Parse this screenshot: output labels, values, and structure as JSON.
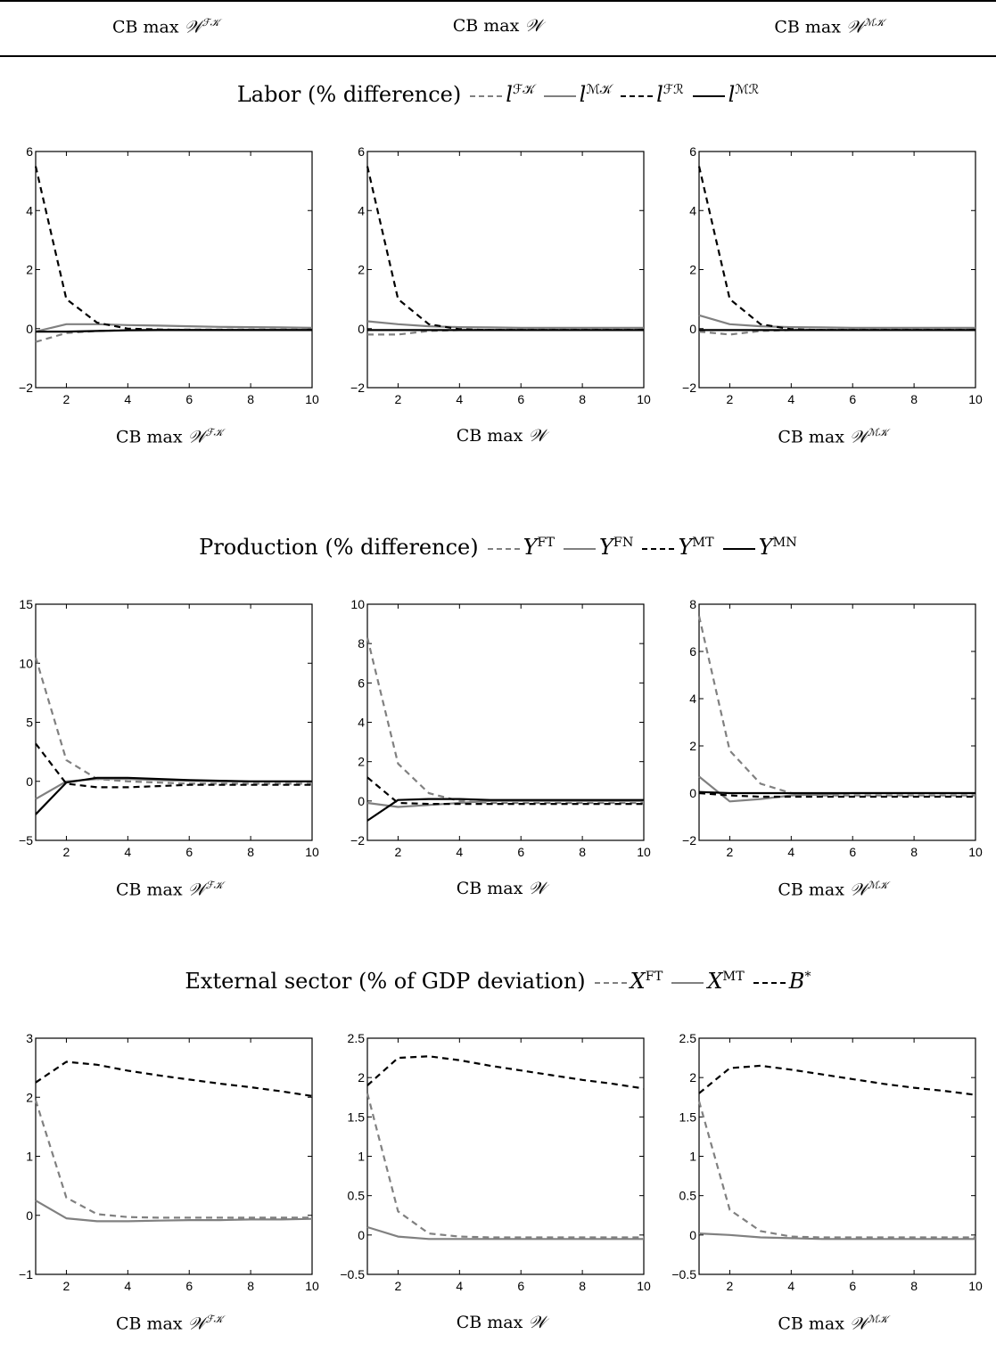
{
  "column_headers": [
    "CB max 𝒲^{ℱ𝒦}",
    "CB max 𝒲",
    "CB max 𝒲^{ℳ𝒦}"
  ],
  "header_parts": [
    {
      "base": "CB max ",
      "sym": "𝒲",
      "sup": "ℱ𝒦"
    },
    {
      "base": "CB max ",
      "sym": "𝒲",
      "sup": ""
    },
    {
      "base": "CB max ",
      "sym": "𝒲",
      "sup": "ℳ𝒦"
    }
  ],
  "colors": {
    "gray": "#808080",
    "black": "#000000"
  },
  "panels": [
    {
      "title": "Labor (% difference)",
      "legend": [
        {
          "label": "l",
          "sup": "ℱ𝒦",
          "color": "#808080",
          "dash": true
        },
        {
          "label": "l",
          "sup": "ℳ𝒦",
          "color": "#808080",
          "dash": false
        },
        {
          "label": "l",
          "sup": "ℱℛ",
          "color": "#000000",
          "dash": true
        },
        {
          "label": "l",
          "sup": "ℳℛ",
          "color": "#000000",
          "dash": false
        }
      ]
    },
    {
      "title": "Production (% difference)",
      "legend": [
        {
          "label": "Y",
          "sup": "FT",
          "color": "#808080",
          "dash": true
        },
        {
          "label": "Y",
          "sup": "FN",
          "color": "#808080",
          "dash": false
        },
        {
          "label": "Y",
          "sup": "MT",
          "color": "#000000",
          "dash": true
        },
        {
          "label": "Y",
          "sup": "MN",
          "color": "#000000",
          "dash": false
        }
      ]
    },
    {
      "title": "External sector (% of GDP deviation)",
      "legend": [
        {
          "label": "X",
          "sup": "FT",
          "color": "#808080",
          "dash": true
        },
        {
          "label": "X",
          "sup": "MT",
          "color": "#808080",
          "dash": false
        },
        {
          "label": "B",
          "sup": "*",
          "color": "#000000",
          "dash": true
        }
      ]
    }
  ],
  "chart_data": [
    {
      "type": "line",
      "panel": "Labor (% difference)",
      "caption": "CB max 𝒲^{ℱ𝒦}",
      "x": [
        1,
        2,
        3,
        4,
        5,
        6,
        7,
        8,
        9,
        10
      ],
      "xlim": [
        1,
        10
      ],
      "ylim": [
        -2,
        6
      ],
      "xticks": [
        2,
        4,
        6,
        8,
        10
      ],
      "yticks": [
        -2,
        0,
        2,
        4,
        6
      ],
      "ytick_labels": [
        "−2",
        "0",
        "2",
        "4",
        "6"
      ],
      "series": [
        {
          "name": "l^{ℱ𝒦}",
          "color": "#808080",
          "dash": true,
          "values": [
            -0.45,
            -0.15,
            -0.08,
            -0.05,
            -0.04,
            -0.03,
            -0.03,
            -0.03,
            -0.03,
            -0.03
          ]
        },
        {
          "name": "l^{ℳ𝒦}",
          "color": "#808080",
          "dash": false,
          "values": [
            -0.1,
            0.15,
            0.15,
            0.12,
            0.1,
            0.08,
            0.06,
            0.05,
            0.04,
            0.03
          ]
        },
        {
          "name": "l^{ℱℛ}",
          "color": "#000000",
          "dash": true,
          "values": [
            5.5,
            1.0,
            0.2,
            0.0,
            -0.03,
            -0.05,
            -0.05,
            -0.05,
            -0.05,
            -0.05
          ]
        },
        {
          "name": "l^{ℳℛ}",
          "color": "#000000",
          "dash": false,
          "values": [
            -0.1,
            -0.1,
            -0.08,
            -0.06,
            -0.05,
            -0.05,
            -0.05,
            -0.05,
            -0.05,
            -0.05
          ]
        }
      ]
    },
    {
      "type": "line",
      "panel": "Labor (% difference)",
      "caption": "CB max 𝒲",
      "x": [
        1,
        2,
        3,
        4,
        5,
        6,
        7,
        8,
        9,
        10
      ],
      "xlim": [
        1,
        10
      ],
      "ylim": [
        -2,
        6
      ],
      "xticks": [
        2,
        4,
        6,
        8,
        10
      ],
      "yticks": [
        -2,
        0,
        2,
        4,
        6
      ],
      "ytick_labels": [
        "−2",
        "0",
        "2",
        "4",
        "6"
      ],
      "series": [
        {
          "name": "l^{ℱ𝒦}",
          "color": "#808080",
          "dash": true,
          "values": [
            -0.2,
            -0.2,
            -0.08,
            -0.05,
            -0.04,
            -0.03,
            -0.03,
            -0.03,
            -0.03,
            -0.03
          ]
        },
        {
          "name": "l^{ℳ𝒦}",
          "color": "#808080",
          "dash": false,
          "values": [
            0.25,
            0.15,
            0.08,
            0.05,
            0.04,
            0.03,
            0.03,
            0.03,
            0.03,
            0.03
          ]
        },
        {
          "name": "l^{ℱℛ}",
          "color": "#000000",
          "dash": true,
          "values": [
            5.5,
            1.0,
            0.15,
            -0.02,
            -0.05,
            -0.05,
            -0.05,
            -0.05,
            -0.05,
            -0.05
          ]
        },
        {
          "name": "l^{ℳℛ}",
          "color": "#000000",
          "dash": false,
          "values": [
            -0.05,
            -0.05,
            -0.05,
            -0.05,
            -0.05,
            -0.05,
            -0.05,
            -0.05,
            -0.05,
            -0.05
          ]
        }
      ]
    },
    {
      "type": "line",
      "panel": "Labor (% difference)",
      "caption": "CB max 𝒲^{ℳ𝒦}",
      "x": [
        1,
        2,
        3,
        4,
        5,
        6,
        7,
        8,
        9,
        10
      ],
      "xlim": [
        1,
        10
      ],
      "ylim": [
        -2,
        6
      ],
      "xticks": [
        2,
        4,
        6,
        8,
        10
      ],
      "yticks": [
        -2,
        0,
        2,
        4,
        6
      ],
      "ytick_labels": [
        "−2",
        "0",
        "2",
        "4",
        "6"
      ],
      "series": [
        {
          "name": "l^{ℱ𝒦}",
          "color": "#808080",
          "dash": true,
          "values": [
            -0.1,
            -0.2,
            -0.08,
            -0.05,
            -0.04,
            -0.03,
            -0.03,
            -0.03,
            -0.03,
            -0.03
          ]
        },
        {
          "name": "l^{ℳ𝒦}",
          "color": "#808080",
          "dash": false,
          "values": [
            0.45,
            0.15,
            0.08,
            0.05,
            0.04,
            0.03,
            0.03,
            0.03,
            0.03,
            0.03
          ]
        },
        {
          "name": "l^{ℱℛ}",
          "color": "#000000",
          "dash": true,
          "values": [
            5.5,
            1.0,
            0.15,
            -0.02,
            -0.05,
            -0.05,
            -0.05,
            -0.05,
            -0.05,
            -0.05
          ]
        },
        {
          "name": "l^{ℳℛ}",
          "color": "#000000",
          "dash": false,
          "values": [
            -0.05,
            -0.05,
            -0.05,
            -0.05,
            -0.05,
            -0.05,
            -0.05,
            -0.05,
            -0.05,
            -0.05
          ]
        }
      ]
    },
    {
      "type": "line",
      "panel": "Production (% difference)",
      "caption": "CB max 𝒲^{ℱ𝒦}",
      "x": [
        1,
        2,
        3,
        4,
        5,
        6,
        7,
        8,
        9,
        10
      ],
      "xlim": [
        1,
        10
      ],
      "ylim": [
        -5,
        15
      ],
      "xticks": [
        2,
        4,
        6,
        8,
        10
      ],
      "yticks": [
        -5,
        0,
        5,
        10,
        15
      ],
      "ytick_labels": [
        "−5",
        "0",
        "5",
        "10",
        "15"
      ],
      "series": [
        {
          "name": "Y^{FT}",
          "color": "#808080",
          "dash": true,
          "values": [
            10.5,
            1.8,
            0.2,
            0.0,
            -0.1,
            -0.2,
            -0.2,
            -0.2,
            -0.2,
            -0.2
          ]
        },
        {
          "name": "Y^{FN}",
          "color": "#808080",
          "dash": false,
          "values": [
            -1.5,
            0.0,
            0.2,
            0.2,
            0.1,
            0.05,
            0.0,
            0.0,
            0.0,
            0.0
          ]
        },
        {
          "name": "Y^{MT}",
          "color": "#000000",
          "dash": true,
          "values": [
            3.2,
            -0.2,
            -0.5,
            -0.5,
            -0.4,
            -0.3,
            -0.3,
            -0.3,
            -0.3,
            -0.3
          ]
        },
        {
          "name": "Y^{MN}",
          "color": "#000000",
          "dash": false,
          "values": [
            -2.8,
            -0.1,
            0.3,
            0.3,
            0.2,
            0.1,
            0.05,
            0.0,
            0.0,
            0.0
          ]
        }
      ]
    },
    {
      "type": "line",
      "panel": "Production (% difference)",
      "caption": "CB max 𝒲",
      "x": [
        1,
        2,
        3,
        4,
        5,
        6,
        7,
        8,
        9,
        10
      ],
      "xlim": [
        1,
        10
      ],
      "ylim": [
        -2,
        10
      ],
      "xticks": [
        2,
        4,
        6,
        8,
        10
      ],
      "yticks": [
        -2,
        0,
        2,
        4,
        6,
        8,
        10
      ],
      "ytick_labels": [
        "−2",
        "0",
        "2",
        "4",
        "6",
        "8",
        "10"
      ],
      "series": [
        {
          "name": "Y^{FT}",
          "color": "#808080",
          "dash": true,
          "values": [
            8.3,
            1.9,
            0.4,
            0.0,
            -0.1,
            -0.1,
            -0.1,
            -0.1,
            -0.1,
            -0.1
          ]
        },
        {
          "name": "Y^{FN}",
          "color": "#808080",
          "dash": false,
          "values": [
            -0.1,
            -0.3,
            -0.2,
            -0.1,
            0.0,
            0.0,
            0.0,
            0.0,
            0.0,
            0.0
          ]
        },
        {
          "name": "Y^{MT}",
          "color": "#000000",
          "dash": true,
          "values": [
            1.2,
            -0.1,
            -0.15,
            -0.15,
            -0.15,
            -0.15,
            -0.15,
            -0.15,
            -0.15,
            -0.15
          ]
        },
        {
          "name": "Y^{MN}",
          "color": "#000000",
          "dash": false,
          "values": [
            -1.0,
            0.05,
            0.1,
            0.1,
            0.05,
            0.05,
            0.05,
            0.05,
            0.05,
            0.05
          ]
        }
      ]
    },
    {
      "type": "line",
      "panel": "Production (% difference)",
      "caption": "CB max 𝒲^{ℳ𝒦}",
      "x": [
        1,
        2,
        3,
        4,
        5,
        6,
        7,
        8,
        9,
        10
      ],
      "xlim": [
        1,
        10
      ],
      "ylim": [
        -2,
        8
      ],
      "xticks": [
        2,
        4,
        6,
        8,
        10
      ],
      "yticks": [
        -2,
        0,
        2,
        4,
        6,
        8
      ],
      "ytick_labels": [
        "−2",
        "0",
        "2",
        "4",
        "6",
        "8"
      ],
      "series": [
        {
          "name": "Y^{FT}",
          "color": "#808080",
          "dash": true,
          "values": [
            7.5,
            1.8,
            0.4,
            0.0,
            -0.1,
            -0.1,
            -0.1,
            -0.1,
            -0.1,
            -0.1
          ]
        },
        {
          "name": "Y^{FN}",
          "color": "#808080",
          "dash": false,
          "values": [
            0.7,
            -0.35,
            -0.25,
            -0.1,
            -0.05,
            0.0,
            0.0,
            0.0,
            0.0,
            0.0
          ]
        },
        {
          "name": "Y^{MT}",
          "color": "#000000",
          "dash": true,
          "values": [
            0.0,
            -0.1,
            -0.15,
            -0.15,
            -0.15,
            -0.15,
            -0.15,
            -0.15,
            -0.15,
            -0.15
          ]
        },
        {
          "name": "Y^{MN}",
          "color": "#000000",
          "dash": false,
          "values": [
            0.05,
            0.0,
            0.0,
            0.0,
            0.0,
            0.0,
            0.0,
            0.0,
            0.0,
            0.0
          ]
        }
      ]
    },
    {
      "type": "line",
      "panel": "External sector (% of GDP deviation)",
      "caption": "CB max 𝒲^{ℱ𝒦}",
      "x": [
        1,
        2,
        3,
        4,
        5,
        6,
        7,
        8,
        9,
        10
      ],
      "xlim": [
        1,
        10
      ],
      "ylim": [
        -1,
        3
      ],
      "xticks": [
        2,
        4,
        6,
        8,
        10
      ],
      "yticks": [
        -1,
        0,
        1,
        2,
        3
      ],
      "ytick_labels": [
        "−1",
        "0",
        "1",
        "2",
        "3"
      ],
      "series": [
        {
          "name": "X^{FT}",
          "color": "#808080",
          "dash": true,
          "values": [
            1.95,
            0.3,
            0.02,
            -0.03,
            -0.04,
            -0.04,
            -0.04,
            -0.04,
            -0.04,
            -0.04
          ]
        },
        {
          "name": "X^{MT}",
          "color": "#808080",
          "dash": false,
          "values": [
            0.25,
            -0.05,
            -0.1,
            -0.1,
            -0.09,
            -0.08,
            -0.08,
            -0.07,
            -0.07,
            -0.06
          ]
        },
        {
          "name": "B^{*}",
          "color": "#000000",
          "dash": true,
          "values": [
            2.25,
            2.6,
            2.55,
            2.45,
            2.37,
            2.3,
            2.23,
            2.17,
            2.1,
            2.02
          ]
        }
      ]
    },
    {
      "type": "line",
      "panel": "External sector (% of GDP deviation)",
      "caption": "CB max 𝒲",
      "x": [
        1,
        2,
        3,
        4,
        5,
        6,
        7,
        8,
        9,
        10
      ],
      "xlim": [
        1,
        10
      ],
      "ylim": [
        -0.5,
        2.5
      ],
      "xticks": [
        2,
        4,
        6,
        8,
        10
      ],
      "yticks": [
        -0.5,
        0,
        0.5,
        1,
        1.5,
        2,
        2.5
      ],
      "ytick_labels": [
        "−0.5",
        "0",
        "0.5",
        "1",
        "1.5",
        "2",
        "2.5"
      ],
      "series": [
        {
          "name": "X^{FT}",
          "color": "#808080",
          "dash": true,
          "values": [
            1.8,
            0.3,
            0.02,
            -0.02,
            -0.03,
            -0.03,
            -0.03,
            -0.03,
            -0.03,
            -0.03
          ]
        },
        {
          "name": "X^{MT}",
          "color": "#808080",
          "dash": false,
          "values": [
            0.1,
            -0.02,
            -0.05,
            -0.05,
            -0.05,
            -0.05,
            -0.05,
            -0.05,
            -0.05,
            -0.05
          ]
        },
        {
          "name": "B^{*}",
          "color": "#000000",
          "dash": true,
          "values": [
            1.9,
            2.25,
            2.27,
            2.22,
            2.15,
            2.09,
            2.03,
            1.97,
            1.92,
            1.86
          ]
        }
      ]
    },
    {
      "type": "line",
      "panel": "External sector (% of GDP deviation)",
      "caption": "CB max 𝒲^{ℳ𝒦}",
      "x": [
        1,
        2,
        3,
        4,
        5,
        6,
        7,
        8,
        9,
        10
      ],
      "xlim": [
        1,
        10
      ],
      "ylim": [
        -0.5,
        2.5
      ],
      "xticks": [
        2,
        4,
        6,
        8,
        10
      ],
      "yticks": [
        -0.5,
        0,
        0.5,
        1,
        1.5,
        2,
        2.5
      ],
      "ytick_labels": [
        "−0.5",
        "0",
        "0.5",
        "1",
        "1.5",
        "2",
        "2.5"
      ],
      "series": [
        {
          "name": "X^{FT}",
          "color": "#808080",
          "dash": true,
          "values": [
            1.7,
            0.32,
            0.05,
            -0.02,
            -0.03,
            -0.03,
            -0.03,
            -0.03,
            -0.03,
            -0.03
          ]
        },
        {
          "name": "X^{MT}",
          "color": "#808080",
          "dash": false,
          "values": [
            0.02,
            0.0,
            -0.03,
            -0.04,
            -0.05,
            -0.05,
            -0.05,
            -0.05,
            -0.05,
            -0.05
          ]
        },
        {
          "name": "B^{*}",
          "color": "#000000",
          "dash": true,
          "values": [
            1.8,
            2.12,
            2.15,
            2.1,
            2.04,
            1.98,
            1.92,
            1.87,
            1.83,
            1.78
          ]
        }
      ]
    }
  ]
}
